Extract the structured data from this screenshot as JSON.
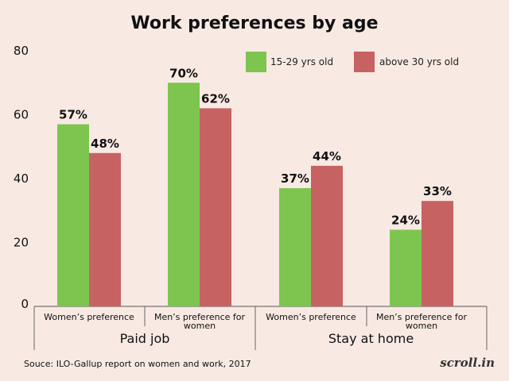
{
  "chart_data": {
    "type": "bar",
    "title": "Work preferences by age",
    "categories": [
      [
        "Women’s preference"
      ],
      [
        "Men’s preference for",
        "women"
      ],
      [
        "Women’s preference"
      ],
      [
        "Men’s preference for",
        "women"
      ]
    ],
    "groups": [
      "Paid job",
      "Stay at home"
    ],
    "series": [
      {
        "name": "15-29 yrs old",
        "color": "#7dc54f",
        "values": [
          57,
          70,
          37,
          24
        ],
        "labels": [
          "57%",
          "70%",
          "37%",
          "24%"
        ]
      },
      {
        "name": "above 30 yrs old",
        "color": "#c76262",
        "values": [
          48,
          62,
          44,
          33
        ],
        "labels": [
          "48%",
          "62%",
          "44%",
          "33%"
        ]
      }
    ],
    "yticks": [
      "0",
      "20",
      "40",
      "60",
      "80"
    ],
    "ylim": [
      0,
      80
    ],
    "xlabel": "",
    "ylabel": "",
    "legend": "top-right",
    "grid": false
  },
  "footer": {
    "source": "Souce: ILO-Gallup report on women and work, 2017",
    "brand": "scroll.in"
  }
}
